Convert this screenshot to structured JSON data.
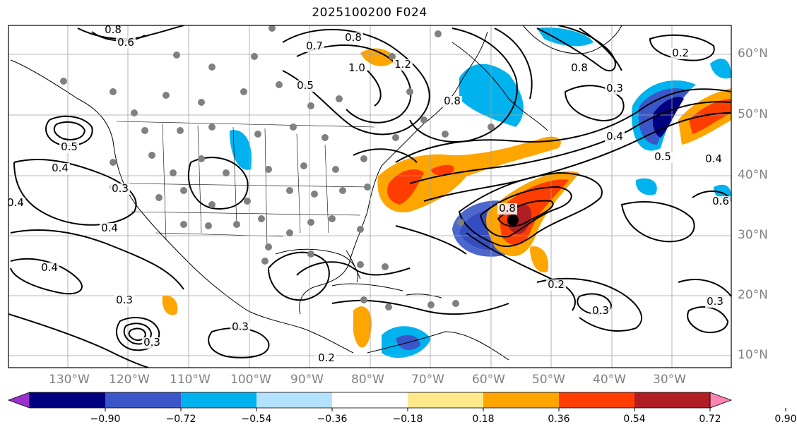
{
  "title": "2025100200 F024",
  "lon_labels": [
    "130°W",
    "120°W",
    "110°W",
    "100°W",
    "90°W",
    "80°W",
    "70°W",
    "60°W",
    "50°W",
    "40°W",
    "30°W"
  ],
  "lat_labels": [
    "60°N",
    "50°N",
    "40°N",
    "30°N",
    "20°N",
    "10°N"
  ],
  "colorbar": {
    "ticks": [
      "−0.90",
      "−0.72",
      "−0.54",
      "−0.36",
      "−0.18",
      "0.18",
      "0.36",
      "0.54",
      "0.72",
      "0.90"
    ],
    "colors": [
      "#9b30d0",
      "#000080",
      "#3a56c8",
      "#00b2ee",
      "#b3e2ff",
      "#ffffff",
      "#ffe88a",
      "#ffa500",
      "#ff3d00",
      "#b01e24",
      "#ff82b4"
    ]
  },
  "contour_labels": [
    "0.8",
    "0.6",
    "0.7",
    "0.8",
    "1.0",
    "1.2",
    "0.5",
    "0.8",
    "0.2",
    "0.8",
    "0.3",
    "0.4",
    "0.5",
    "0.4",
    "0.3",
    "0.4",
    "0.4",
    "0.4",
    "0.3",
    "0.8",
    "0.2",
    "0.3",
    "0.3",
    "0.4",
    "0.6",
    "0.3",
    "0.2",
    "0.3",
    "0.5"
  ],
  "hurricane_marker": "tropical-cyclone-center",
  "station_marker_color": "#808080",
  "contour_color": "#000000",
  "grid_color": "#a0a0a0"
}
